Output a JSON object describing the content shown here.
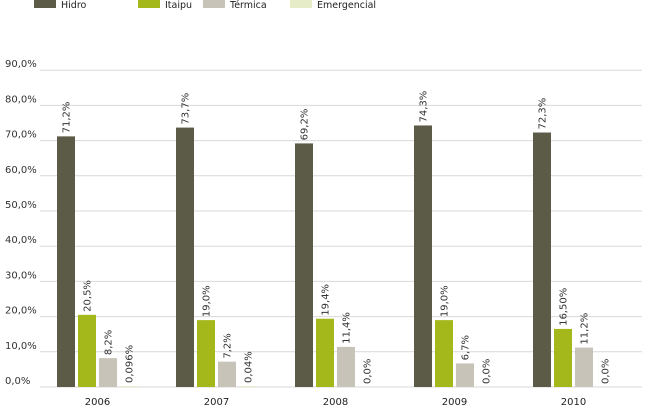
{
  "chart_data": {
    "type": "bar",
    "categories": [
      "2006",
      "2007",
      "2008",
      "2009",
      "2010"
    ],
    "series": [
      {
        "name": "Hidro",
        "color": "#5c5b48",
        "values": [
          71.2,
          73.7,
          69.2,
          74.3,
          72.3
        ],
        "labels": [
          "71,2%",
          "73,7%",
          "69,2%",
          "74,3%",
          "72,3%"
        ]
      },
      {
        "name": "Itaipu",
        "color": "#a4b81c",
        "values": [
          20.5,
          19.0,
          19.4,
          19.0,
          16.5
        ],
        "labels": [
          "20,5%",
          "19,0%",
          "19,4%",
          "19,0%",
          "16,50%"
        ]
      },
      {
        "name": "Térmica",
        "color": "#c8c3b9",
        "values": [
          8.2,
          7.2,
          11.4,
          6.7,
          11.2
        ],
        "labels": [
          "8,2%",
          "7,2%",
          "11,4%",
          "6,7%",
          "11,2%"
        ]
      },
      {
        "name": "Emergencial",
        "color": "#e6ecc8",
        "values": [
          0.096,
          0.04,
          0.0,
          0.0,
          0.0
        ],
        "labels": [
          "0,096%",
          "0,04%",
          "0,0%",
          "0,0%",
          "0,0%"
        ]
      }
    ],
    "y_ticks": [
      "0,0%",
      "10,0%",
      "20,0%",
      "30,0%",
      "40,0%",
      "50,0%",
      "60,0%",
      "70,0%",
      "80,0%",
      "90,0%"
    ],
    "ylim": [
      0,
      90
    ],
    "grid": true,
    "legend_position": "top"
  }
}
